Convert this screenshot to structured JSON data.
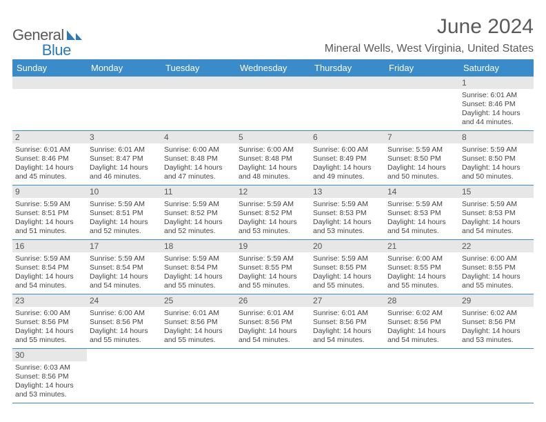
{
  "brand": {
    "name_a": "General",
    "name_b": "Blue"
  },
  "title": "June 2024",
  "location": "Mineral Wells, West Virginia, United States",
  "colors": {
    "header_bg": "#3a8bc9",
    "header_fg": "#ffffff",
    "daynum_bg": "#e7e7e7",
    "text": "#444444",
    "rule": "#3a8bc9"
  },
  "weekdays": [
    "Sunday",
    "Monday",
    "Tuesday",
    "Wednesday",
    "Thursday",
    "Friday",
    "Saturday"
  ],
  "label_sunrise": "Sunrise: ",
  "label_sunset": "Sunset: ",
  "label_daylight": "Daylight: ",
  "weeks": [
    [
      null,
      null,
      null,
      null,
      null,
      null,
      {
        "n": "1",
        "sr": "6:01 AM",
        "ss": "8:46 PM",
        "dl": "14 hours and 44 minutes."
      }
    ],
    [
      {
        "n": "2",
        "sr": "6:01 AM",
        "ss": "8:46 PM",
        "dl": "14 hours and 45 minutes."
      },
      {
        "n": "3",
        "sr": "6:01 AM",
        "ss": "8:47 PM",
        "dl": "14 hours and 46 minutes."
      },
      {
        "n": "4",
        "sr": "6:00 AM",
        "ss": "8:48 PM",
        "dl": "14 hours and 47 minutes."
      },
      {
        "n": "5",
        "sr": "6:00 AM",
        "ss": "8:48 PM",
        "dl": "14 hours and 48 minutes."
      },
      {
        "n": "6",
        "sr": "6:00 AM",
        "ss": "8:49 PM",
        "dl": "14 hours and 49 minutes."
      },
      {
        "n": "7",
        "sr": "5:59 AM",
        "ss": "8:50 PM",
        "dl": "14 hours and 50 minutes."
      },
      {
        "n": "8",
        "sr": "5:59 AM",
        "ss": "8:50 PM",
        "dl": "14 hours and 50 minutes."
      }
    ],
    [
      {
        "n": "9",
        "sr": "5:59 AM",
        "ss": "8:51 PM",
        "dl": "14 hours and 51 minutes."
      },
      {
        "n": "10",
        "sr": "5:59 AM",
        "ss": "8:51 PM",
        "dl": "14 hours and 52 minutes."
      },
      {
        "n": "11",
        "sr": "5:59 AM",
        "ss": "8:52 PM",
        "dl": "14 hours and 52 minutes."
      },
      {
        "n": "12",
        "sr": "5:59 AM",
        "ss": "8:52 PM",
        "dl": "14 hours and 53 minutes."
      },
      {
        "n": "13",
        "sr": "5:59 AM",
        "ss": "8:53 PM",
        "dl": "14 hours and 53 minutes."
      },
      {
        "n": "14",
        "sr": "5:59 AM",
        "ss": "8:53 PM",
        "dl": "14 hours and 54 minutes."
      },
      {
        "n": "15",
        "sr": "5:59 AM",
        "ss": "8:53 PM",
        "dl": "14 hours and 54 minutes."
      }
    ],
    [
      {
        "n": "16",
        "sr": "5:59 AM",
        "ss": "8:54 PM",
        "dl": "14 hours and 54 minutes."
      },
      {
        "n": "17",
        "sr": "5:59 AM",
        "ss": "8:54 PM",
        "dl": "14 hours and 54 minutes."
      },
      {
        "n": "18",
        "sr": "5:59 AM",
        "ss": "8:54 PM",
        "dl": "14 hours and 55 minutes."
      },
      {
        "n": "19",
        "sr": "5:59 AM",
        "ss": "8:55 PM",
        "dl": "14 hours and 55 minutes."
      },
      {
        "n": "20",
        "sr": "5:59 AM",
        "ss": "8:55 PM",
        "dl": "14 hours and 55 minutes."
      },
      {
        "n": "21",
        "sr": "6:00 AM",
        "ss": "8:55 PM",
        "dl": "14 hours and 55 minutes."
      },
      {
        "n": "22",
        "sr": "6:00 AM",
        "ss": "8:55 PM",
        "dl": "14 hours and 55 minutes."
      }
    ],
    [
      {
        "n": "23",
        "sr": "6:00 AM",
        "ss": "8:56 PM",
        "dl": "14 hours and 55 minutes."
      },
      {
        "n": "24",
        "sr": "6:00 AM",
        "ss": "8:56 PM",
        "dl": "14 hours and 55 minutes."
      },
      {
        "n": "25",
        "sr": "6:01 AM",
        "ss": "8:56 PM",
        "dl": "14 hours and 55 minutes."
      },
      {
        "n": "26",
        "sr": "6:01 AM",
        "ss": "8:56 PM",
        "dl": "14 hours and 54 minutes."
      },
      {
        "n": "27",
        "sr": "6:01 AM",
        "ss": "8:56 PM",
        "dl": "14 hours and 54 minutes."
      },
      {
        "n": "28",
        "sr": "6:02 AM",
        "ss": "8:56 PM",
        "dl": "14 hours and 54 minutes."
      },
      {
        "n": "29",
        "sr": "6:02 AM",
        "ss": "8:56 PM",
        "dl": "14 hours and 53 minutes."
      }
    ],
    [
      {
        "n": "30",
        "sr": "6:03 AM",
        "ss": "8:56 PM",
        "dl": "14 hours and 53 minutes."
      },
      null,
      null,
      null,
      null,
      null,
      null
    ]
  ]
}
